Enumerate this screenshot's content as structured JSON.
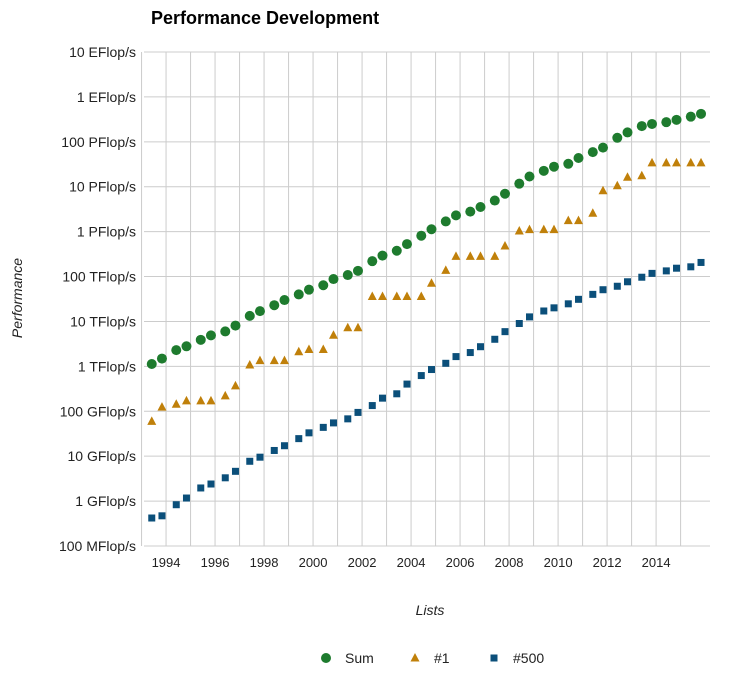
{
  "chart_data": {
    "type": "scatter",
    "title": "Performance Development",
    "xlabel": "Lists",
    "ylabel": "Performance",
    "y_scale": "log",
    "ylim_gflops": [
      0.1,
      10000000000
    ],
    "xlim": [
      1993.1,
      2016.2
    ],
    "grid": true,
    "legend_position": "bottom",
    "y_ticks": [
      {
        "label": "100 MFlop/s",
        "value": 0.1
      },
      {
        "label": "1 GFlop/s",
        "value": 1
      },
      {
        "label": "10 GFlop/s",
        "value": 10
      },
      {
        "label": "100 GFlop/s",
        "value": 100
      },
      {
        "label": "1 TFlop/s",
        "value": 1000
      },
      {
        "label": "10 TFlop/s",
        "value": 10000
      },
      {
        "label": "100 TFlop/s",
        "value": 100000
      },
      {
        "label": "1 PFlop/s",
        "value": 1000000
      },
      {
        "label": "10 PFlop/s",
        "value": 10000000
      },
      {
        "label": "100 PFlop/s",
        "value": 100000000
      },
      {
        "label": "1 EFlop/s",
        "value": 1000000000
      },
      {
        "label": "10 EFlop/s",
        "value": 10000000000
      }
    ],
    "x_ticks": [
      "1994",
      "1996",
      "1998",
      "2000",
      "2002",
      "2004",
      "2006",
      "2008",
      "2010",
      "2012",
      "2014"
    ],
    "x_grid_years": [
      1993,
      1994,
      1995,
      1996,
      1997,
      1998,
      1999,
      2000,
      2001,
      2002,
      2003,
      2004,
      2005,
      2006,
      2007,
      2008,
      2009,
      2010,
      2011,
      2012,
      2013,
      2014,
      2015
    ],
    "x": [
      "1993-06",
      "1993-11",
      "1994-06",
      "1994-11",
      "1995-06",
      "1995-11",
      "1996-06",
      "1996-11",
      "1997-06",
      "1997-11",
      "1998-06",
      "1998-11",
      "1999-06",
      "1999-11",
      "2000-06",
      "2000-11",
      "2001-06",
      "2001-11",
      "2002-06",
      "2002-11",
      "2003-06",
      "2003-11",
      "2004-06",
      "2004-11",
      "2005-06",
      "2005-11",
      "2006-06",
      "2006-11",
      "2007-06",
      "2007-11",
      "2008-06",
      "2008-11",
      "2009-06",
      "2009-11",
      "2010-06",
      "2010-11",
      "2011-06",
      "2011-11",
      "2012-06",
      "2012-11",
      "2013-06",
      "2013-11",
      "2014-06",
      "2014-11",
      "2015-06",
      "2015-11"
    ],
    "series": [
      {
        "name": "Sum",
        "marker": "circle",
        "color": "#1e7b2e",
        "values": [
          1130,
          1490,
          2300,
          2800,
          3900,
          4900,
          6000,
          8100,
          13300,
          17000,
          23000,
          30000,
          40000,
          51000,
          64000,
          88000,
          108000,
          134000,
          220000,
          293000,
          375000,
          528000,
          811000,
          1130000,
          1690000,
          2300000,
          2790000,
          3540000,
          4920000,
          6970000,
          11700000,
          16900000,
          22600000,
          27900000,
          32400000,
          43600000,
          58900000,
          74200000,
          123000000,
          162000000,
          224000000,
          250000000,
          274000000,
          309000000,
          363000000,
          420000000
        ]
      },
      {
        "name": "#1",
        "marker": "triangle",
        "color": "#c0800a",
        "values": [
          59.7,
          124,
          143,
          170,
          170,
          170,
          220,
          368,
          1070,
          1340,
          1340,
          1340,
          2120,
          2380,
          2380,
          4940,
          7230,
          7230,
          35900,
          35900,
          35900,
          35900,
          35900,
          70700,
          137000,
          281000,
          281000,
          281000,
          281000,
          478000,
          1030000,
          1110000,
          1110000,
          1110000,
          1760000,
          1760000,
          2570000,
          8160000,
          10500000,
          16300000,
          17600000,
          33900000,
          33900000,
          33900000,
          33900000,
          33900000
        ]
      },
      {
        "name": "#500",
        "marker": "square",
        "color": "#0b4f7a",
        "values": [
          0.42,
          0.47,
          0.83,
          1.17,
          1.96,
          2.4,
          3.3,
          4.6,
          7.7,
          9.5,
          13.4,
          17.1,
          24.6,
          33.1,
          43.8,
          55.1,
          67.8,
          94.3,
          134,
          196,
          245,
          403,
          624,
          850,
          1170,
          1650,
          2030,
          2740,
          4010,
          5930,
          9000,
          12640,
          17100,
          20100,
          24700,
          31100,
          40100,
          50900,
          60800,
          76500,
          96600,
          117600,
          133700,
          153400,
          164700,
          206000
        ]
      }
    ]
  }
}
